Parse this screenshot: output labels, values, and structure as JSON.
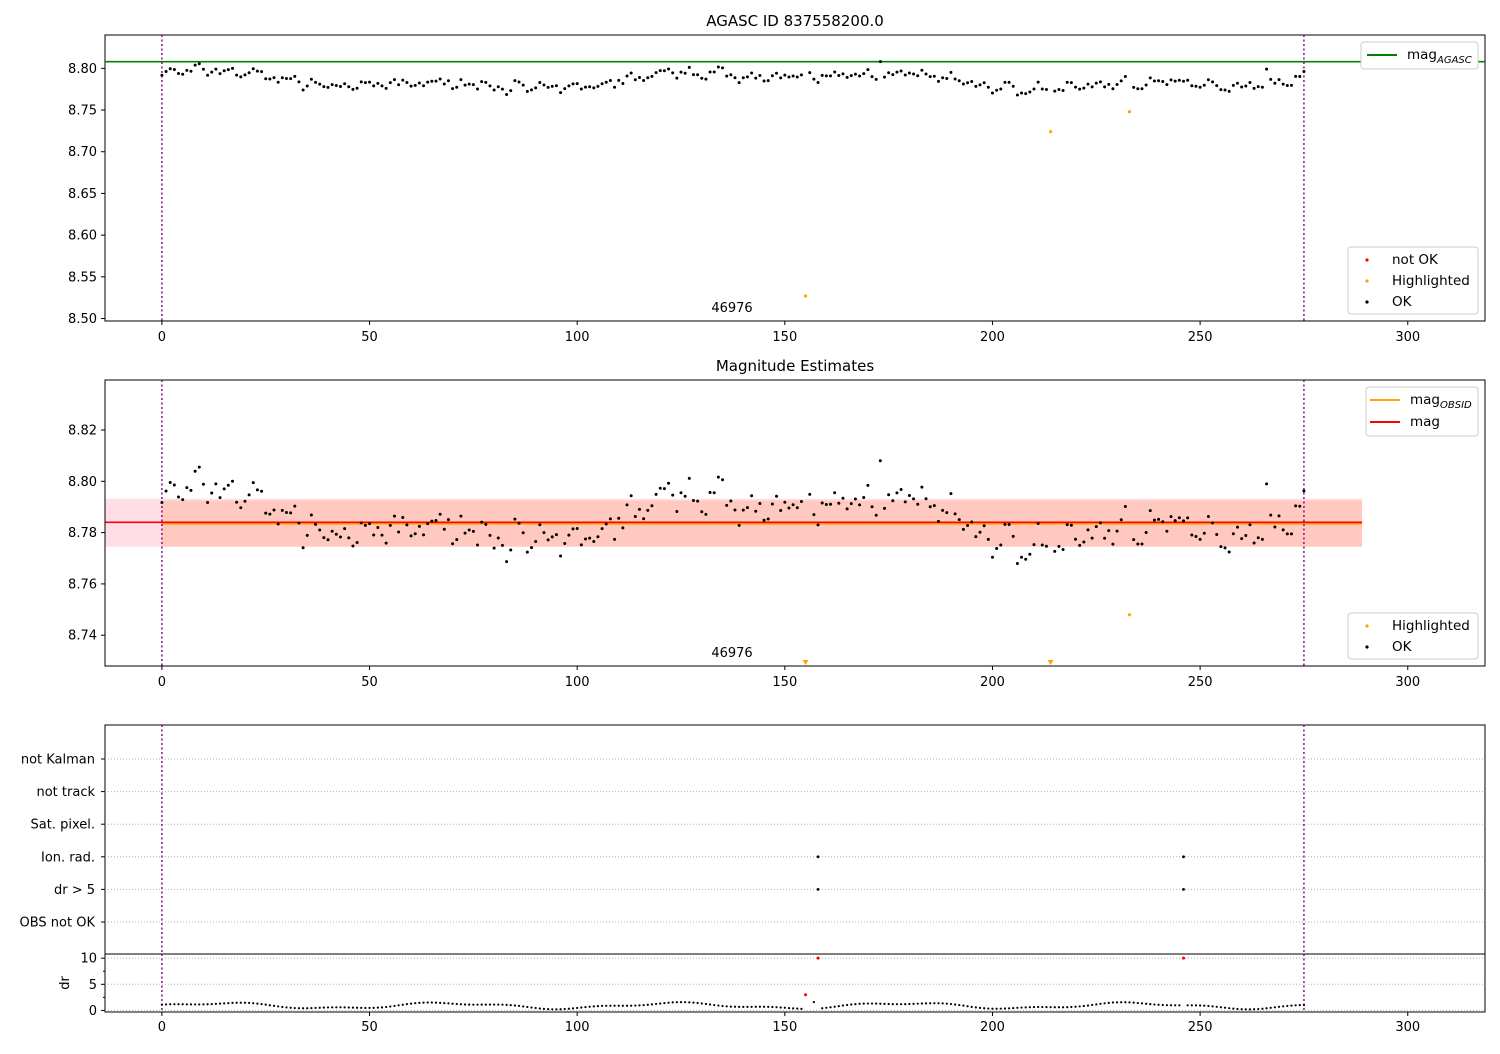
{
  "chart_data": [
    {
      "type": "scatter",
      "title": "AGASC ID 837558200.0",
      "xlim": [
        -13.7,
        318.6
      ],
      "ylim": [
        8.497,
        8.84
      ],
      "xticks": [
        "0",
        "50",
        "100",
        "150",
        "200",
        "250",
        "300"
      ],
      "yticks": [
        "8.50",
        "8.55",
        "8.60",
        "8.65",
        "8.70",
        "8.75",
        "8.80"
      ],
      "vlines": [
        0,
        275
      ],
      "annotation": {
        "text": "46976",
        "x": 137.6,
        "y": 8.5115
      },
      "hline": {
        "name": "mag_AGASC",
        "value": 8.808,
        "x_end": 318.6,
        "color": "#008000"
      },
      "legend_top": [
        {
          "label": "mag",
          "sub": "AGASC",
          "color": "#008000"
        }
      ],
      "legend_bottom": [
        {
          "label": "not OK",
          "color": "#ff0000"
        },
        {
          "label": "Highlighted",
          "color": "#ffa500"
        },
        {
          "label": "OK",
          "color": "#000000"
        }
      ],
      "ok_series": {
        "name": "OK",
        "color": "#000000"
      },
      "highlighted": [
        {
          "x": 155,
          "y": 8.527
        },
        {
          "x": 214,
          "y": 8.724
        },
        {
          "x": 233,
          "y": 8.748
        }
      ]
    },
    {
      "type": "scatter",
      "title": "Magnitude Estimates",
      "xlim": [
        -13.7,
        318.6
      ],
      "ylim": [
        8.728,
        8.8395
      ],
      "xticks": [
        "0",
        "50",
        "100",
        "150",
        "200",
        "250",
        "300"
      ],
      "yticks": [
        "8.74",
        "8.76",
        "8.78",
        "8.80",
        "8.82"
      ],
      "vlines": [
        0,
        275
      ],
      "annotation": {
        "text": "46976",
        "x": 137.6,
        "y": 8.7315
      },
      "mag_obsid": {
        "name": "mag_OBSID",
        "value": 8.7835,
        "band": [
          8.7745,
          8.7925
        ],
        "x_start": 0,
        "x_end": 289,
        "color": "#ffa500"
      },
      "mag": {
        "name": "mag",
        "value": 8.784,
        "band": [
          8.7745,
          8.7932
        ],
        "x_start": -13.7,
        "x_end": 289,
        "color": "#ff0000"
      },
      "legend_top": [
        {
          "label": "mag",
          "sub": "OBSID",
          "color": "#ffa500"
        },
        {
          "label": "mag",
          "sub": "",
          "color": "#ff0000"
        }
      ],
      "legend_bottom": [
        {
          "label": "Highlighted",
          "color": "#ffa500"
        },
        {
          "label": "OK",
          "color": "#000000"
        }
      ],
      "highlighted": [
        {
          "x": 233,
          "y": 8.748
        }
      ],
      "out_of_range": [
        {
          "x": 155,
          "y": 8.729
        },
        {
          "x": 214,
          "y": 8.729
        }
      ]
    },
    {
      "type": "scatter",
      "xlim": [
        -13.7,
        318.6
      ],
      "categories": [
        "OBS not OK",
        "dr > 5",
        "Ion. rad.",
        "Sat. pixel.",
        "not track",
        "not Kalman"
      ],
      "flag_points": [
        {
          "x": 158,
          "category": "dr > 5"
        },
        {
          "x": 158,
          "category": "Ion. rad."
        },
        {
          "x": 246,
          "category": "dr > 5"
        },
        {
          "x": 246,
          "category": "Ion. rad."
        }
      ],
      "vlines": [
        0,
        275
      ]
    },
    {
      "type": "scatter",
      "ylabel": "dr",
      "xlim": [
        -13.7,
        318.6
      ],
      "ylim": [
        -0.3,
        10.8
      ],
      "xticks": [
        "0",
        "50",
        "100",
        "150",
        "200",
        "250",
        "300"
      ],
      "yticks": [
        "0",
        "5",
        "10"
      ],
      "dashed_levels": [
        0,
        5,
        10
      ],
      "vlines": [
        0,
        275
      ],
      "red_points": [
        {
          "x": 155,
          "y": 3.0
        },
        {
          "x": 158,
          "y": 10.0
        },
        {
          "x": 246,
          "y": 10.0
        }
      ]
    }
  ]
}
